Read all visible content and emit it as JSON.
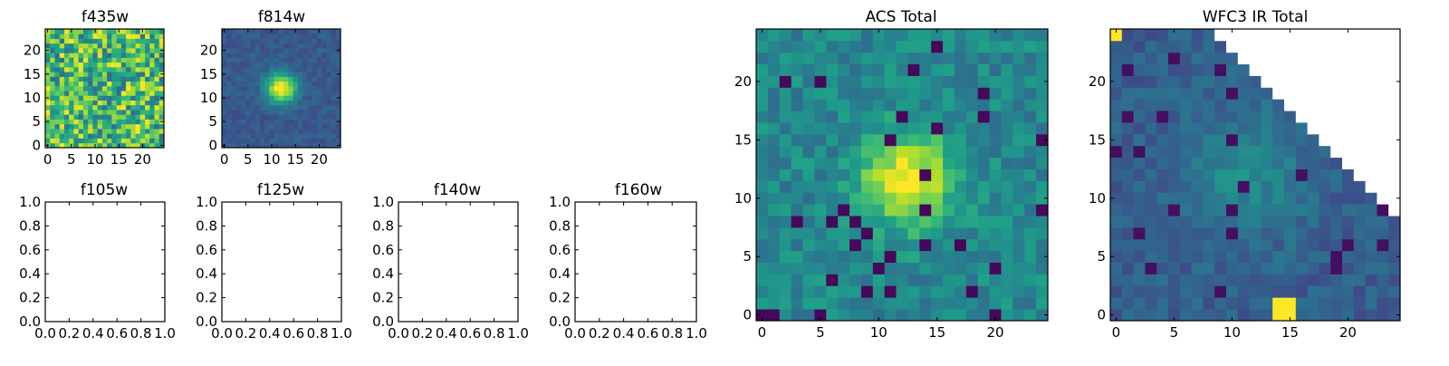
{
  "chart_data": [
    {
      "type": "heatmap",
      "title": "f435w",
      "xlim": [
        -0.5,
        24.5
      ],
      "ylim": [
        -0.5,
        24.5
      ],
      "xticks": [
        0,
        5,
        10,
        15,
        20
      ],
      "yticks": [
        0,
        5,
        10,
        15,
        20
      ],
      "xtick_labels": [
        "0",
        "5",
        "10",
        "15",
        "20"
      ],
      "ytick_labels": [
        "0",
        "5",
        "10",
        "15",
        "20"
      ],
      "colormap": "viridis",
      "grid_size": [
        25,
        25
      ],
      "description_of_values": "noise field, no visible source"
    },
    {
      "type": "heatmap",
      "title": "f814w",
      "xlim": [
        -0.5,
        24.5
      ],
      "ylim": [
        -0.5,
        24.5
      ],
      "xticks": [
        0,
        5,
        10,
        15,
        20
      ],
      "yticks": [
        0,
        5,
        10,
        15,
        20
      ],
      "xtick_labels": [
        "0",
        "5",
        "10",
        "15",
        "20"
      ],
      "ytick_labels": [
        "0",
        "5",
        "10",
        "15",
        "20"
      ],
      "colormap": "viridis",
      "grid_size": [
        25,
        25
      ],
      "source_center": [
        12,
        12
      ]
    },
    {
      "type": "empty",
      "title": "f105w",
      "xlim": [
        0.0,
        1.0
      ],
      "ylim": [
        0.0,
        1.0
      ],
      "xtick_labels": [
        "0.0",
        "0.2",
        "0.4",
        "0.6",
        "0.8",
        "1.0"
      ],
      "ytick_labels": [
        "0.0",
        "0.2",
        "0.4",
        "0.6",
        "0.8",
        "1.0"
      ]
    },
    {
      "type": "empty",
      "title": "f125w",
      "xlim": [
        0.0,
        1.0
      ],
      "ylim": [
        0.0,
        1.0
      ],
      "xtick_labels": [
        "0.0",
        "0.2",
        "0.4",
        "0.6",
        "0.8",
        "1.0"
      ],
      "ytick_labels": [
        "0.0",
        "0.2",
        "0.4",
        "0.6",
        "0.8",
        "1.0"
      ]
    },
    {
      "type": "empty",
      "title": "f140w",
      "xlim": [
        0.0,
        1.0
      ],
      "ylim": [
        0.0,
        1.0
      ],
      "xtick_labels": [
        "0.0",
        "0.2",
        "0.4",
        "0.6",
        "0.8",
        "1.0"
      ],
      "ytick_labels": [
        "0.0",
        "0.2",
        "0.4",
        "0.6",
        "0.8",
        "1.0"
      ]
    },
    {
      "type": "empty",
      "title": "f160w",
      "xlim": [
        0.0,
        1.0
      ],
      "ylim": [
        0.0,
        1.0
      ],
      "xtick_labels": [
        "0.0",
        "0.2",
        "0.4",
        "0.6",
        "0.8",
        "1.0"
      ],
      "ytick_labels": [
        "0.0",
        "0.2",
        "0.4",
        "0.6",
        "0.8",
        "1.0"
      ]
    },
    {
      "type": "heatmap",
      "title": "ACS Total",
      "xlim": [
        -0.5,
        24.5
      ],
      "ylim": [
        -0.5,
        24.5
      ],
      "xticks": [
        0,
        5,
        10,
        15,
        20
      ],
      "yticks": [
        0,
        5,
        10,
        15,
        20
      ],
      "xtick_labels": [
        "0",
        "5",
        "10",
        "15",
        "20"
      ],
      "ytick_labels": [
        "0",
        "5",
        "10",
        "15",
        "20"
      ],
      "colormap": "viridis",
      "grid_size": [
        25,
        25
      ],
      "source_center": [
        12.5,
        11.5
      ]
    },
    {
      "type": "heatmap",
      "title": "WFC3 IR Total",
      "xlim": [
        -0.5,
        24.5
      ],
      "ylim": [
        -0.5,
        24.5
      ],
      "xticks": [
        0,
        5,
        10,
        15,
        20
      ],
      "yticks": [
        0,
        5,
        10,
        15,
        20
      ],
      "xtick_labels": [
        "0",
        "5",
        "10",
        "15",
        "20"
      ],
      "ytick_labels": [
        "0",
        "5",
        "10",
        "15",
        "20"
      ],
      "colormap": "viridis",
      "grid_size": [
        25,
        25
      ],
      "masked_region": "upper-right triangle (white, no data)",
      "bright_pixels": [
        [
          0,
          24
        ],
        [
          14,
          0
        ],
        [
          15,
          0
        ],
        [
          14,
          1
        ],
        [
          15,
          1
        ]
      ]
    }
  ]
}
